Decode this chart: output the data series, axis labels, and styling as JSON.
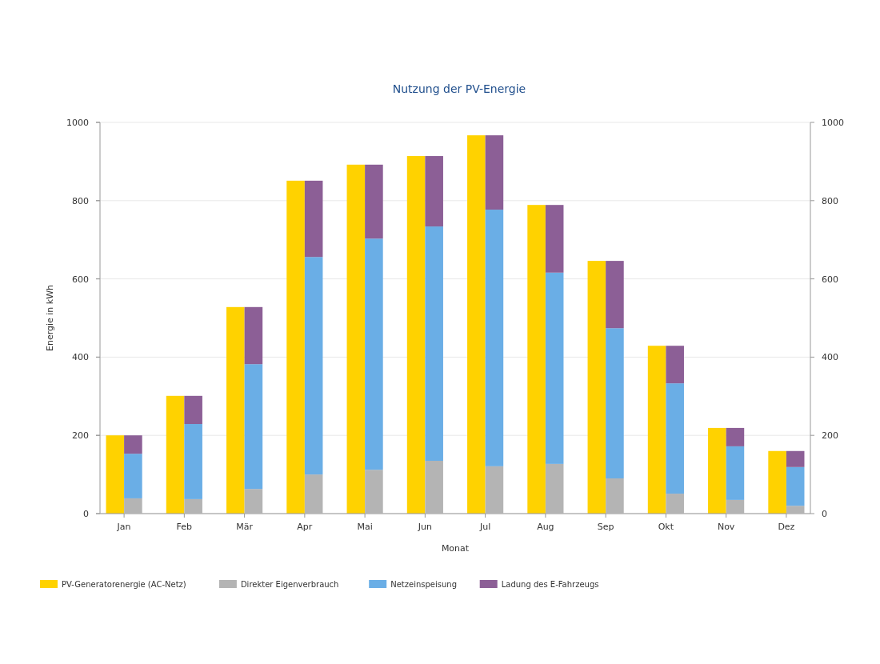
{
  "chart_data": [
    {
      "type": "bar",
      "title": "Nutzung der PV-Energie",
      "xlabel": "Monat",
      "ylabel": "Energie in kWh",
      "categories": [
        null,
        null,
        null,
        null,
        null,
        null,
        null,
        null,
        null,
        null,
        null,
        null
      ],
      "series": [
        {
          "name": "PV-Generatorenergie (AC-Netz)",
          "color": "#ffd200",
          "values": [
            200,
            301,
            528,
            851,
            892,
            914,
            967,
            789,
            646,
            429,
            219,
            160
          ]
        }
      ],
      "ylim": [
        0,
        1000
      ],
      "yticks": [
        0,
        200,
        400,
        600,
        800,
        1000
      ],
      "y2lim": [
        0,
        1000
      ],
      "y2ticks": [
        0,
        200,
        400,
        600,
        800,
        1000
      ],
      "tick_labels": "y",
      "grid": "y",
      "legend": "bottom left"
    },
    {
      "type": "bar",
      "categories": [
        "Jan",
        "Feb",
        "Mär",
        "Apr",
        "Mai",
        "Jun",
        "Jul",
        "Aug",
        "Sep",
        "Okt",
        "Nov",
        "Dez"
      ],
      "stacked": true,
      "series": [
        {
          "name": "Direkter Eigenverbrauch",
          "color": "#b4b4b4",
          "values": [
            39,
            37,
            63,
            100,
            112,
            135,
            121,
            127,
            90,
            51,
            35,
            20
          ]
        },
        {
          "name": "Netzeinspeisung",
          "color": "#6aaee6",
          "values": [
            114,
            192,
            319,
            556,
            591,
            599,
            656,
            489,
            384,
            282,
            137,
            99
          ]
        },
        {
          "name": "Ladung des E-Fahrzeugs",
          "color": "#8c5f96",
          "values": [
            47,
            72,
            146,
            195,
            189,
            180,
            190,
            173,
            172,
            96,
            47,
            41
          ]
        }
      ],
      "ylim": [
        0,
        1000
      ],
      "yticks": [
        0,
        200,
        400,
        600,
        800,
        1000
      ],
      "tick_labels": "x",
      "legend": "bottom left"
    }
  ]
}
